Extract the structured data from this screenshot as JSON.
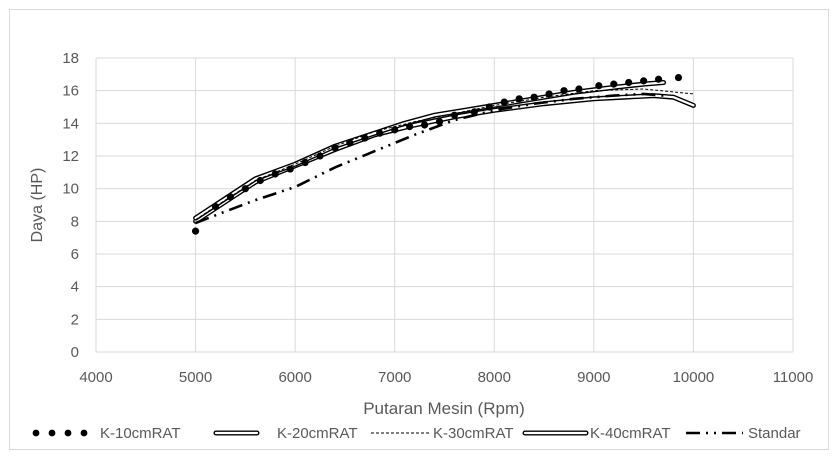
{
  "chart_data": {
    "type": "line",
    "title": "",
    "xlabel": "Putaran Mesin (Rpm)",
    "ylabel": "Daya (HP)",
    "xlim": [
      4000,
      11000
    ],
    "ylim": [
      0,
      18
    ],
    "x_ticks": [
      "4000",
      "5000",
      "6000",
      "7000",
      "8000",
      "9000",
      "10000",
      "11000"
    ],
    "y_ticks": [
      "0",
      "2",
      "4",
      "6",
      "8",
      "10",
      "12",
      "14",
      "16",
      "18"
    ],
    "grid": true,
    "legend_position": "bottom",
    "series": [
      {
        "name": "K-10cmRAT",
        "style": "dots",
        "color": "#000000",
        "points": [
          [
            5000,
            7.4
          ],
          [
            5200,
            8.9
          ],
          [
            5350,
            9.5
          ],
          [
            5500,
            10.0
          ],
          [
            5650,
            10.5
          ],
          [
            5800,
            10.9
          ],
          [
            5950,
            11.2
          ],
          [
            6100,
            11.6
          ],
          [
            6250,
            12.0
          ],
          [
            6400,
            12.5
          ],
          [
            6550,
            12.8
          ],
          [
            6700,
            13.1
          ],
          [
            6850,
            13.4
          ],
          [
            7000,
            13.6
          ],
          [
            7150,
            13.8
          ],
          [
            7300,
            13.9
          ],
          [
            7450,
            14.1
          ],
          [
            7600,
            14.5
          ],
          [
            7800,
            14.7
          ],
          [
            7950,
            15.0
          ],
          [
            8100,
            15.3
          ],
          [
            8250,
            15.5
          ],
          [
            8400,
            15.6
          ],
          [
            8550,
            15.8
          ],
          [
            8700,
            16.0
          ],
          [
            8850,
            16.1
          ],
          [
            9050,
            16.3
          ],
          [
            9200,
            16.4
          ],
          [
            9350,
            16.5
          ],
          [
            9500,
            16.6
          ],
          [
            9650,
            16.7
          ],
          [
            9850,
            16.8
          ]
        ]
      },
      {
        "name": "K-20cmRAT",
        "style": "double",
        "color": "#000000",
        "points": [
          [
            5000,
            8.2
          ],
          [
            5300,
            9.4
          ],
          [
            5600,
            10.6
          ],
          [
            6000,
            11.5
          ],
          [
            6400,
            12.6
          ],
          [
            6800,
            13.4
          ],
          [
            7100,
            14.0
          ],
          [
            7400,
            14.5
          ],
          [
            7700,
            14.8
          ],
          [
            8000,
            15.1
          ],
          [
            8400,
            15.5
          ],
          [
            8800,
            15.9
          ],
          [
            9200,
            16.2
          ],
          [
            9500,
            16.4
          ],
          [
            9700,
            16.5
          ]
        ]
      },
      {
        "name": "K-30cmRAT",
        "style": "dashed-thin",
        "color": "#000000",
        "points": [
          [
            5000,
            8.1
          ],
          [
            5300,
            9.3
          ],
          [
            5600,
            10.5
          ],
          [
            6000,
            11.5
          ],
          [
            6400,
            12.6
          ],
          [
            6800,
            13.5
          ],
          [
            7200,
            14.1
          ],
          [
            7600,
            14.6
          ],
          [
            8000,
            15.1
          ],
          [
            8500,
            15.6
          ],
          [
            9000,
            16.0
          ],
          [
            9500,
            16.1
          ],
          [
            10000,
            15.8
          ]
        ]
      },
      {
        "name": "K-40cmRAT",
        "style": "double",
        "color": "#000000",
        "points": [
          [
            5000,
            8.0
          ],
          [
            5300,
            9.2
          ],
          [
            5600,
            10.4
          ],
          [
            6000,
            11.4
          ],
          [
            6400,
            12.4
          ],
          [
            6800,
            13.3
          ],
          [
            7200,
            13.9
          ],
          [
            7600,
            14.4
          ],
          [
            8000,
            14.8
          ],
          [
            8500,
            15.2
          ],
          [
            9000,
            15.5
          ],
          [
            9300,
            15.6
          ],
          [
            9600,
            15.7
          ],
          [
            9800,
            15.6
          ],
          [
            10000,
            15.1
          ]
        ]
      },
      {
        "name": "Standar",
        "style": "dash-dot",
        "color": "#000000",
        "points": [
          [
            5000,
            7.9
          ],
          [
            5300,
            8.6
          ],
          [
            5600,
            9.3
          ],
          [
            6000,
            10.1
          ],
          [
            6400,
            11.3
          ],
          [
            6800,
            12.3
          ],
          [
            7200,
            13.3
          ],
          [
            7600,
            14.2
          ],
          [
            8000,
            14.8
          ],
          [
            8400,
            15.2
          ],
          [
            8800,
            15.5
          ],
          [
            9200,
            15.7
          ],
          [
            9500,
            15.8
          ],
          [
            9700,
            15.7
          ]
        ]
      }
    ]
  }
}
